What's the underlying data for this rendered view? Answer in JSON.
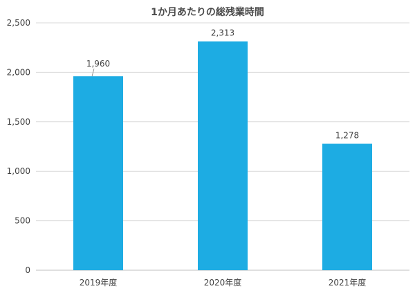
{
  "chart_data": {
    "type": "bar",
    "title": "1か月あたりの総残業時間",
    "categories": [
      "2019年度",
      "2020年度",
      "2021年度"
    ],
    "values": [
      1960,
      2313,
      1278
    ],
    "data_labels": [
      "1,960",
      "2,313",
      "1,278"
    ],
    "ylim": [
      0,
      2500
    ],
    "yticks": [
      0,
      500,
      1000,
      1500,
      2000,
      2500
    ],
    "ytick_labels": [
      "0",
      "500",
      "1,000",
      "1,500",
      "2,000",
      "2,500"
    ],
    "xlabel": "",
    "ylabel": "",
    "grid": true,
    "legend": "none",
    "bar_color": "#1DACE3",
    "grid_color": "#D9D9D9",
    "text_color": "#404040"
  }
}
